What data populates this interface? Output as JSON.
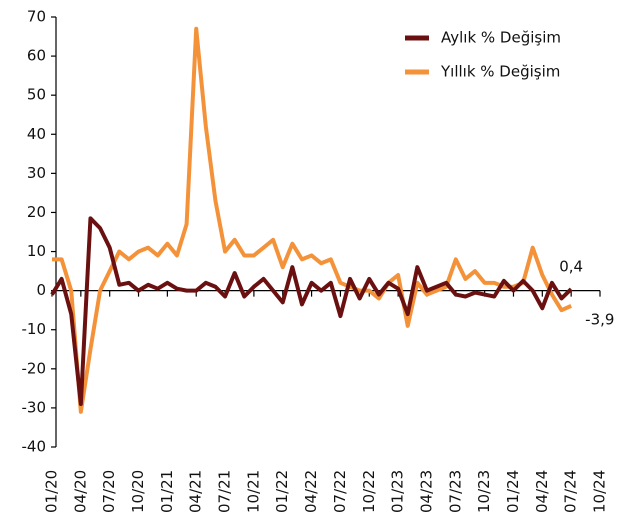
{
  "chart_data": {
    "type": "line",
    "categories": [
      "01/20",
      null,
      null,
      "04/20",
      null,
      null,
      "07/20",
      null,
      null,
      "10/20",
      null,
      null,
      "01/21",
      null,
      null,
      "04/21",
      null,
      null,
      "07/21",
      null,
      null,
      "10/21",
      null,
      null,
      "01/22",
      null,
      null,
      "04/22",
      null,
      null,
      "07/22",
      null,
      null,
      "10/22",
      null,
      null,
      "01/23",
      null,
      null,
      "04/23",
      null,
      null,
      "07/23",
      null,
      null,
      "10/23",
      null,
      null,
      "01/24",
      null,
      null,
      "04/24",
      null,
      null,
      "07/24",
      null,
      null,
      "10/24"
    ],
    "series": [
      {
        "name": "Aylık % Değişim",
        "color": "#6b1010",
        "values": [
          -1,
          3,
          -6,
          -29,
          18.5,
          16,
          11,
          1.5,
          2,
          0,
          1.5,
          0.5,
          2,
          0.5,
          0,
          0,
          2,
          1,
          -1.5,
          4.5,
          -1.5,
          1,
          3,
          0,
          -3,
          6,
          -3.5,
          2,
          0,
          2,
          -6.5,
          3,
          -2,
          3,
          -1,
          2,
          0.5,
          -6,
          6,
          0,
          1,
          2,
          -1,
          -1.5,
          -0.5,
          -1,
          -1.5,
          2.5,
          0,
          2.5,
          0,
          -4.5,
          2,
          -2,
          0.4,
          null,
          null,
          null
        ],
        "value_labels": [
          null,
          null,
          null,
          null,
          null,
          null,
          null,
          null,
          null,
          null,
          null,
          null,
          null,
          null,
          null,
          null,
          null,
          null,
          null,
          null,
          null,
          null,
          null,
          null,
          null,
          null,
          null,
          null,
          null,
          null,
          null,
          null,
          null,
          null,
          null,
          null,
          null,
          null,
          null,
          null,
          null,
          null,
          null,
          null,
          null,
          null,
          null,
          null,
          null,
          null,
          null,
          null,
          null,
          null,
          "0,4",
          null,
          null,
          null
        ]
      },
      {
        "name": "Yıllık % Değişim",
        "color": "#f4923a",
        "values": [
          8,
          8,
          0,
          -31,
          -15,
          0,
          5,
          10,
          8,
          10,
          11,
          9,
          12,
          9,
          17,
          67,
          42,
          23,
          10,
          13,
          9,
          9,
          11,
          13,
          6,
          12,
          8,
          9,
          7,
          8,
          2,
          1,
          0,
          0,
          -2,
          2,
          4,
          -9,
          2,
          -1,
          0,
          1,
          8,
          3,
          5,
          2,
          2,
          1,
          1,
          2,
          11,
          4,
          -1,
          -5,
          -3.9,
          null,
          null,
          null
        ],
        "value_labels": [
          null,
          null,
          null,
          null,
          null,
          null,
          null,
          null,
          null,
          null,
          null,
          null,
          null,
          null,
          null,
          null,
          null,
          null,
          null,
          null,
          null,
          null,
          null,
          null,
          null,
          null,
          null,
          null,
          null,
          null,
          null,
          null,
          null,
          null,
          null,
          null,
          null,
          null,
          null,
          null,
          null,
          null,
          null,
          null,
          null,
          null,
          null,
          null,
          null,
          null,
          null,
          null,
          null,
          null,
          "-3,9",
          null,
          null,
          null
        ]
      }
    ],
    "ylim": [
      -40,
      70
    ],
    "yticks": [
      -40,
      -30,
      -20,
      -10,
      0,
      10,
      20,
      30,
      40,
      50,
      60,
      70
    ],
    "legend": "top-right"
  }
}
